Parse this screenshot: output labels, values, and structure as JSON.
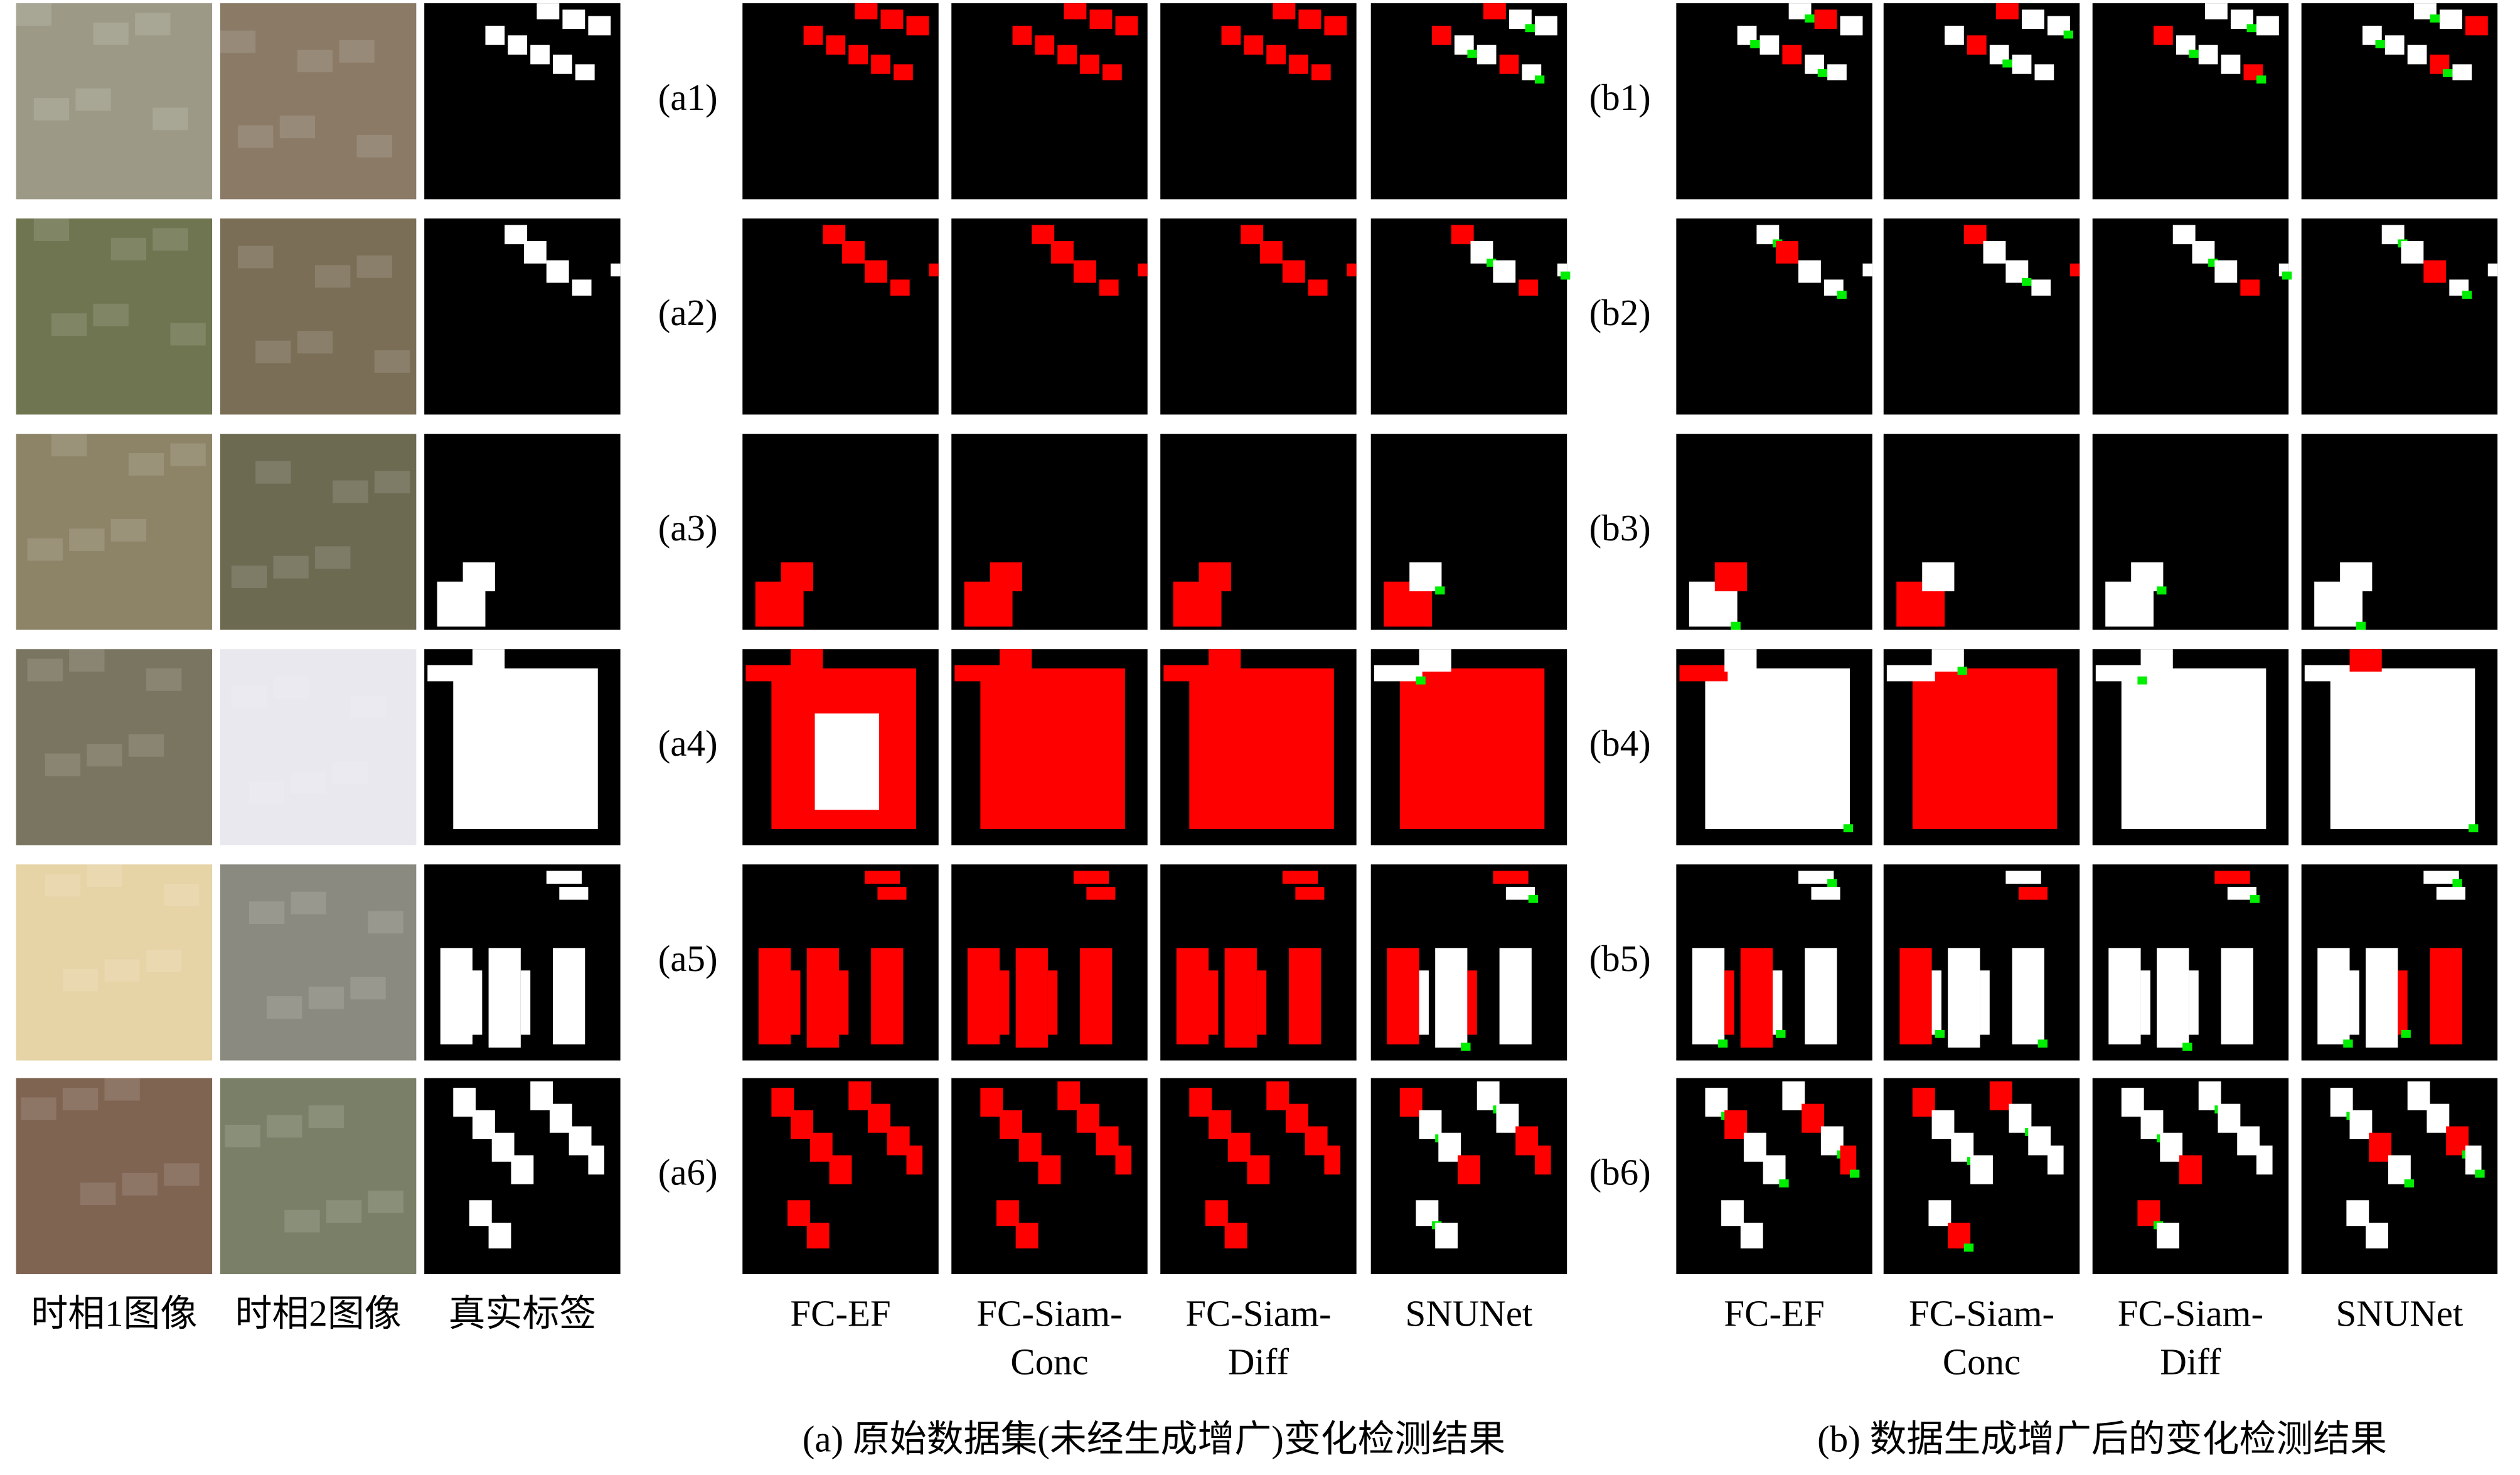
{
  "columns": [
    {
      "lines": [
        "时相1图像"
      ]
    },
    {
      "lines": [
        "时相2图像"
      ]
    },
    {
      "lines": [
        "真实标签"
      ]
    },
    {
      "lines": [
        "FC-EF"
      ]
    },
    {
      "lines": [
        "FC-Siam-",
        "Conc"
      ]
    },
    {
      "lines": [
        "FC-Siam-",
        "Diff"
      ]
    },
    {
      "lines": [
        "SNUNet"
      ]
    },
    {
      "lines": [
        "FC-EF"
      ]
    },
    {
      "lines": [
        "FC-Siam-",
        "Conc"
      ]
    },
    {
      "lines": [
        "FC-Siam-",
        "Diff"
      ]
    },
    {
      "lines": [
        "SNUNet"
      ]
    }
  ],
  "row_labels_a": [
    "(a1)",
    "(a2)",
    "(a3)",
    "(a4)",
    "(a5)",
    "(a6)"
  ],
  "row_labels_b": [
    "(b1)",
    "(b2)",
    "(b3)",
    "(b4)",
    "(b5)",
    "(b6)"
  ],
  "captions": [
    "(a) 原始数据集(未经生成增广)变化检测结果",
    "(b) 数据生成增广后的变化检测结果"
  ]
}
